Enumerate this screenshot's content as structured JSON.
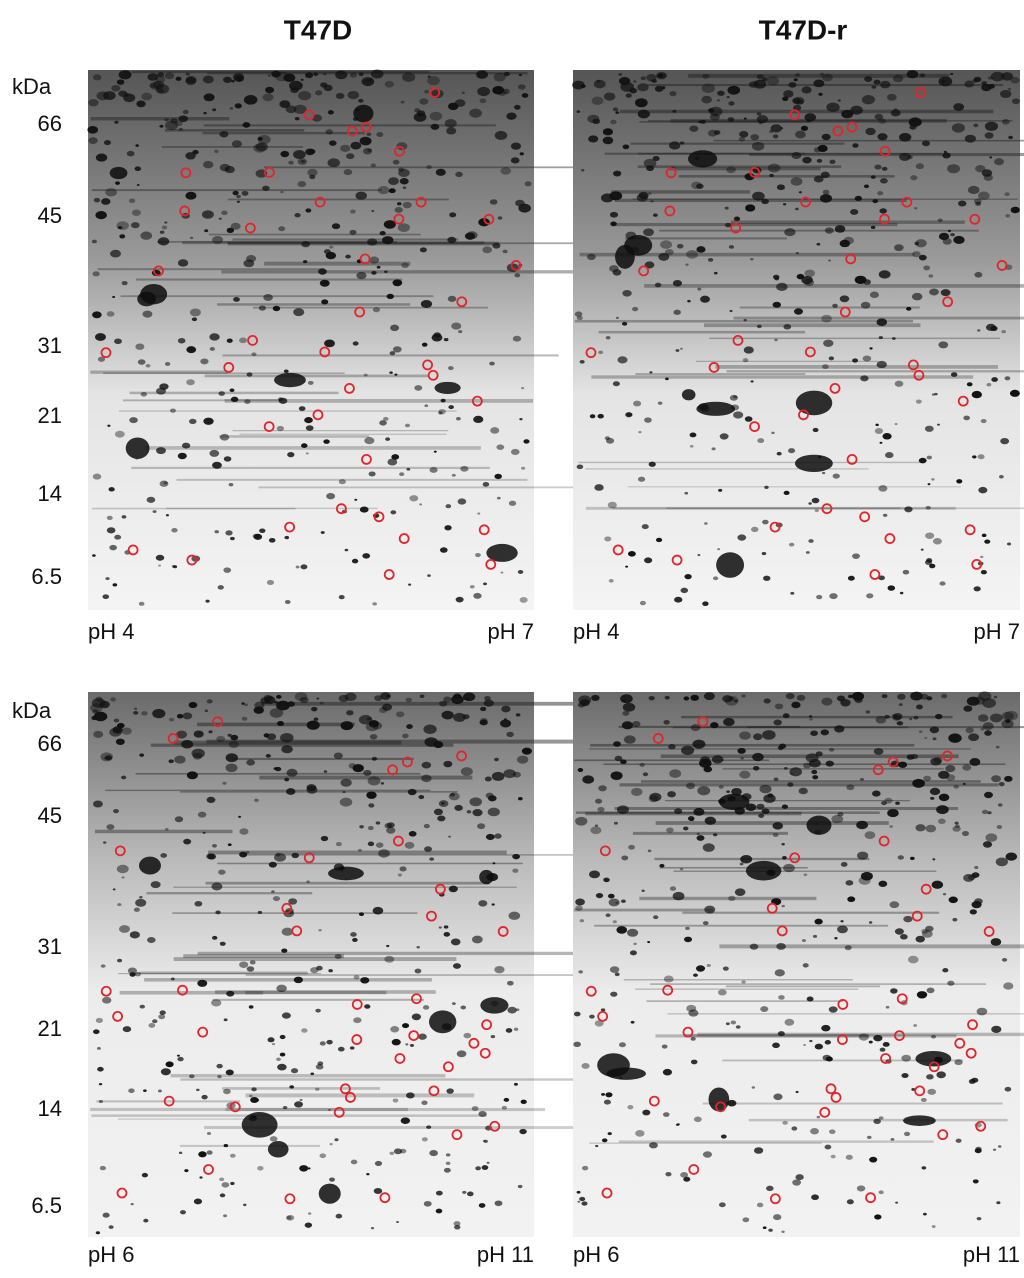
{
  "columns": [
    "T47D",
    "T47D-r"
  ],
  "rows": [
    {
      "unit": "kDa",
      "mw_labels": [
        "66",
        "45",
        "31",
        "21",
        "14",
        "6.5"
      ],
      "ph_left": "pH 4",
      "ph_right": "pH 7"
    },
    {
      "unit": "kDa",
      "mw_labels": [
        "66",
        "45",
        "31",
        "21",
        "14",
        "6.5"
      ],
      "ph_left": "pH 6",
      "ph_right": "pH 11"
    }
  ]
}
